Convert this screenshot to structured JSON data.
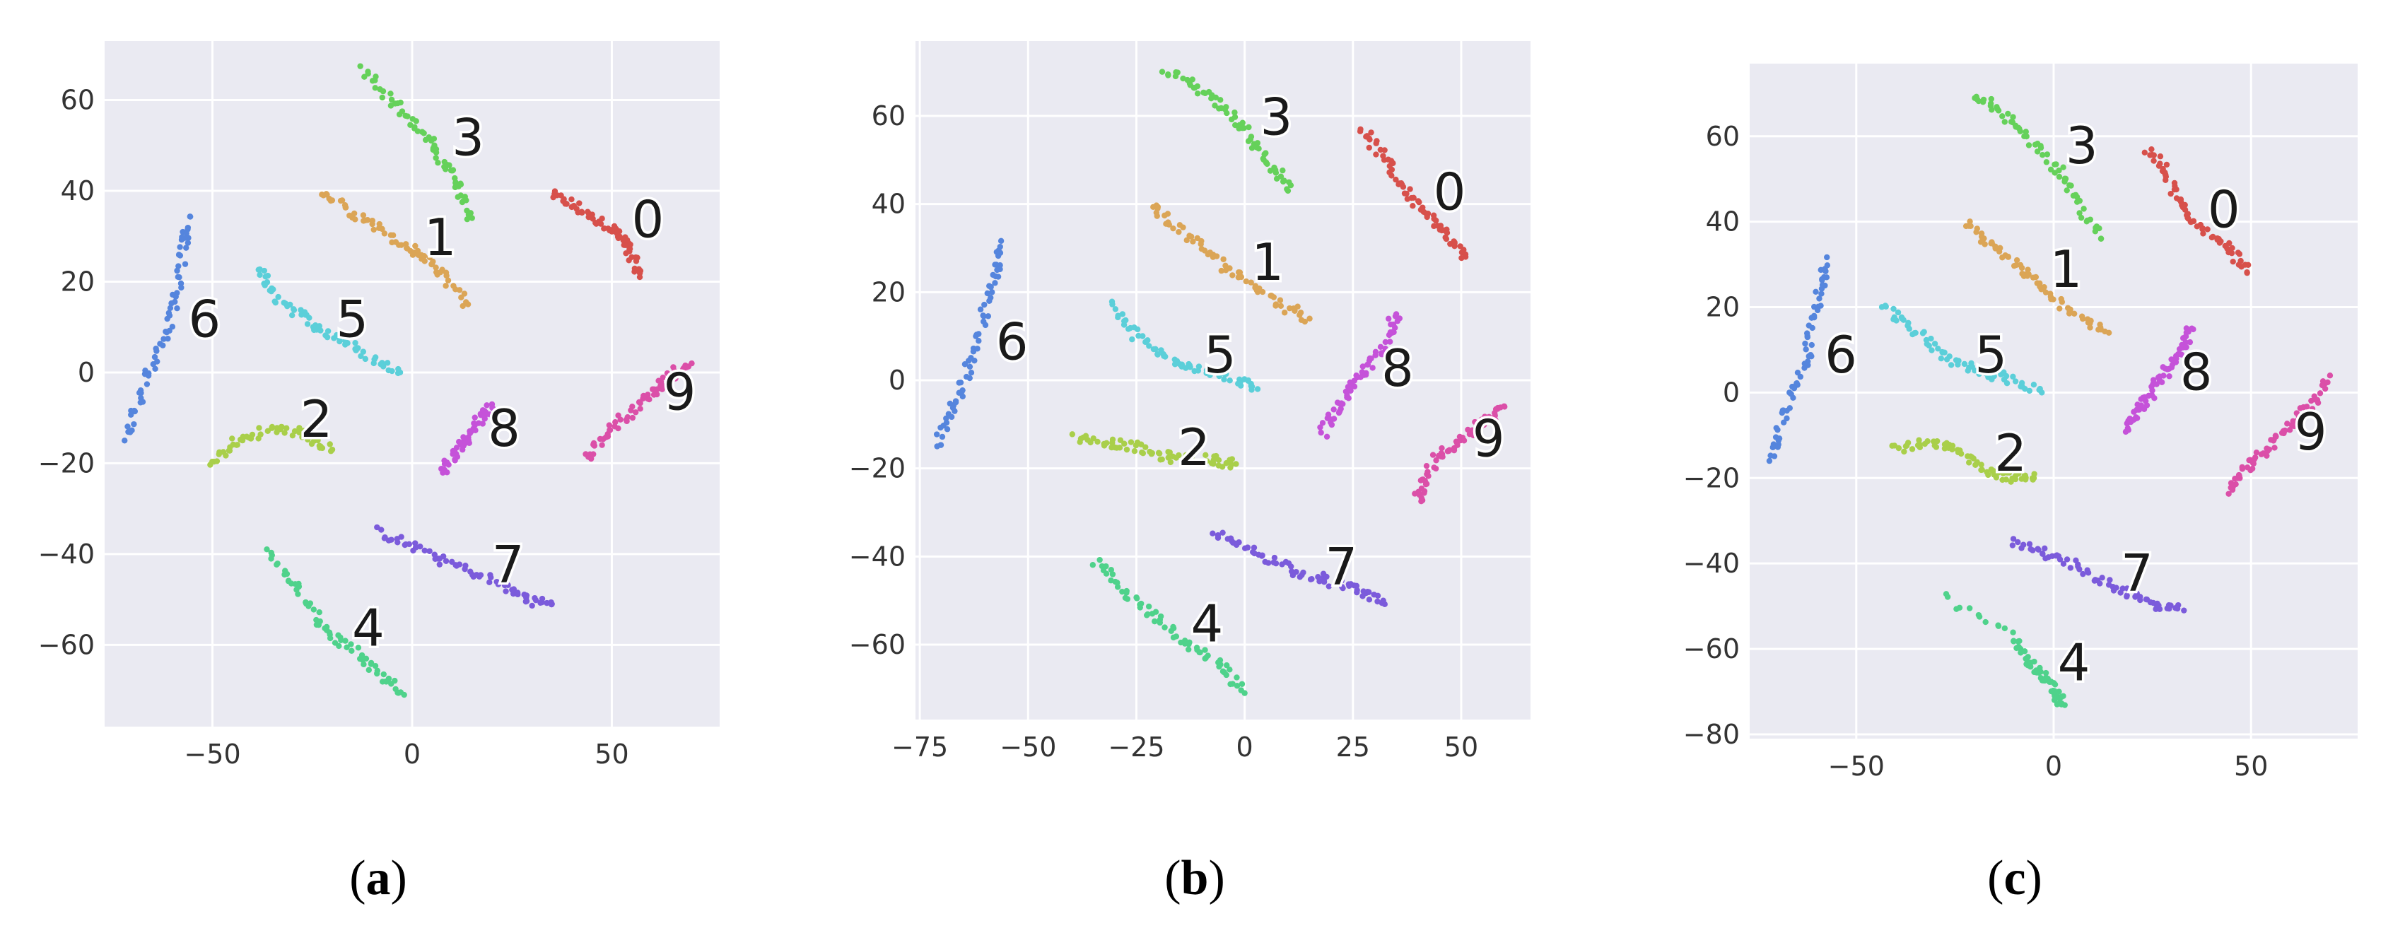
{
  "chart_data": [
    {
      "type": "scatter",
      "panel_label": "a",
      "xlim": [
        -77,
        77
      ],
      "ylim": [
        -78,
        73
      ],
      "xticks": [
        -50,
        0,
        50
      ],
      "yticks": [
        60,
        40,
        20,
        0,
        -20,
        -40,
        -60
      ],
      "grid": true,
      "clusters": [
        {
          "label": "0",
          "color": "#d7504b",
          "points": [
            [
              35,
              39
            ],
            [
              40,
              37
            ],
            [
              45,
              34
            ],
            [
              50,
              32
            ],
            [
              53,
              29
            ],
            [
              55,
              26
            ],
            [
              57,
              21
            ]
          ]
        },
        {
          "label": "1",
          "color": "#dba556",
          "points": [
            [
              -23,
              40
            ],
            [
              -16,
              36
            ],
            [
              -9,
              32
            ],
            [
              -2,
              28
            ],
            [
              3,
              25
            ],
            [
              8,
              21
            ],
            [
              14,
              15
            ]
          ]
        },
        {
          "label": "2",
          "color": "#a9cf4a",
          "points": [
            [
              -50,
              -20
            ],
            [
              -45,
              -16
            ],
            [
              -40,
              -14
            ],
            [
              -33,
              -12
            ],
            [
              -26,
              -14
            ],
            [
              -20,
              -17
            ]
          ]
        },
        {
          "label": "3",
          "color": "#65d15a",
          "points": [
            [
              -12,
              67
            ],
            [
              -6,
              61
            ],
            [
              0,
              55
            ],
            [
              5,
              50
            ],
            [
              9,
              45
            ],
            [
              12,
              40
            ],
            [
              15,
              34
            ]
          ]
        },
        {
          "label": "4",
          "color": "#4fd28b",
          "points": [
            [
              -36,
              -40
            ],
            [
              -30,
              -46
            ],
            [
              -25,
              -53
            ],
            [
              -20,
              -58
            ],
            [
              -14,
              -62
            ],
            [
              -8,
              -67
            ],
            [
              -2,
              -71
            ]
          ]
        },
        {
          "label": "5",
          "color": "#5bcfd9",
          "points": [
            [
              -38,
              23
            ],
            [
              -36,
              18
            ],
            [
              -30,
              14
            ],
            [
              -24,
              10
            ],
            [
              -17,
              7
            ],
            [
              -10,
              3
            ],
            [
              -3,
              0
            ]
          ]
        },
        {
          "label": "6",
          "color": "#5585dd",
          "points": [
            [
              -56,
              34
            ],
            [
              -57,
              28
            ],
            [
              -59,
              18
            ],
            [
              -61,
              10
            ],
            [
              -65,
              2
            ],
            [
              -68,
              -6
            ],
            [
              -72,
              -15
            ]
          ]
        },
        {
          "label": "7",
          "color": "#7b5bdb",
          "points": [
            [
              -9,
              -35
            ],
            [
              -1,
              -38
            ],
            [
              7,
              -41
            ],
            [
              15,
              -44
            ],
            [
              23,
              -47
            ],
            [
              29,
              -50
            ],
            [
              35,
              -51
            ]
          ]
        },
        {
          "label": "8",
          "color": "#c552d9",
          "points": [
            [
              8,
              -22
            ],
            [
              10,
              -19
            ],
            [
              12,
              -16
            ],
            [
              14,
              -14
            ],
            [
              17,
              -10
            ],
            [
              20,
              -7
            ]
          ]
        },
        {
          "label": "9",
          "color": "#db4fa8",
          "points": [
            [
              44,
              -19
            ],
            [
              48,
              -14
            ],
            [
              53,
              -10
            ],
            [
              58,
              -6
            ],
            [
              62,
              -3
            ],
            [
              66,
              0
            ],
            [
              70,
              2
            ]
          ]
        }
      ]
    },
    {
      "type": "scatter",
      "panel_label": "b",
      "xlim": [
        -76,
        66
      ],
      "ylim": [
        -77,
        77
      ],
      "xticks": [
        -75,
        -50,
        -25,
        0,
        25,
        50
      ],
      "yticks": [
        60,
        40,
        20,
        0,
        -20,
        -40,
        -60
      ],
      "grid": true,
      "clusters": [
        {
          "label": "0",
          "color": "#d7504b",
          "points": [
            [
              27,
              57
            ],
            [
              31,
              52
            ],
            [
              35,
              46
            ],
            [
              39,
              41
            ],
            [
              43,
              37
            ],
            [
              47,
              32
            ],
            [
              51,
              28
            ]
          ]
        },
        {
          "label": "1",
          "color": "#dba556",
          "points": [
            [
              -22,
              40
            ],
            [
              -16,
              35
            ],
            [
              -10,
              30
            ],
            [
              -3,
              25
            ],
            [
              3,
              21
            ],
            [
              9,
              17
            ],
            [
              15,
              14
            ]
          ]
        },
        {
          "label": "2",
          "color": "#a9cf4a",
          "points": [
            [
              -39,
              -13
            ],
            [
              -32,
              -14
            ],
            [
              -26,
              -15
            ],
            [
              -20,
              -17
            ],
            [
              -14,
              -18
            ],
            [
              -7,
              -18
            ],
            [
              -2,
              -19
            ]
          ]
        },
        {
          "label": "3",
          "color": "#65d15a",
          "points": [
            [
              -18,
              70
            ],
            [
              -12,
              67
            ],
            [
              -6,
              63
            ],
            [
              -1,
              58
            ],
            [
              3,
              53
            ],
            [
              7,
              48
            ],
            [
              10,
              43
            ]
          ]
        },
        {
          "label": "4",
          "color": "#4fd28b",
          "points": [
            [
              -34,
              -41
            ],
            [
              -29,
              -47
            ],
            [
              -23,
              -52
            ],
            [
              -17,
              -57
            ],
            [
              -11,
              -61
            ],
            [
              -5,
              -65
            ],
            [
              0,
              -71
            ]
          ]
        },
        {
          "label": "5",
          "color": "#5bcfd9",
          "points": [
            [
              -30,
              17
            ],
            [
              -26,
              11
            ],
            [
              -20,
              6
            ],
            [
              -14,
              4
            ],
            [
              -8,
              2
            ],
            [
              -2,
              0
            ],
            [
              3,
              -2
            ]
          ]
        },
        {
          "label": "6",
          "color": "#5585dd",
          "points": [
            [
              -56,
              31
            ],
            [
              -57,
              24
            ],
            [
              -60,
              16
            ],
            [
              -62,
              7
            ],
            [
              -65,
              -1
            ],
            [
              -68,
              -8
            ],
            [
              -71,
              -15
            ]
          ]
        },
        {
          "label": "7",
          "color": "#7b5bdb",
          "points": [
            [
              -7,
              -35
            ],
            [
              0,
              -38
            ],
            [
              7,
              -41
            ],
            [
              14,
              -44
            ],
            [
              21,
              -46
            ],
            [
              27,
              -48
            ],
            [
              32,
              -50
            ]
          ]
        },
        {
          "label": "8",
          "color": "#c552d9",
          "points": [
            [
              18,
              -12
            ],
            [
              21,
              -7
            ],
            [
              24,
              -3
            ],
            [
              27,
              1
            ],
            [
              30,
              5
            ],
            [
              33,
              10
            ],
            [
              35,
              15
            ]
          ]
        },
        {
          "label": "9",
          "color": "#db4fa8",
          "points": [
            [
              40,
              -27
            ],
            [
              41,
              -23
            ],
            [
              44,
              -18
            ],
            [
              48,
              -15
            ],
            [
              52,
              -12
            ],
            [
              56,
              -9
            ],
            [
              60,
              -6
            ]
          ]
        }
      ]
    },
    {
      "type": "scatter",
      "panel_label": "c",
      "xlim": [
        -77,
        77
      ],
      "ylim": [
        -81,
        77
      ],
      "xticks": [
        -50,
        0,
        50
      ],
      "yticks": [
        60,
        40,
        20,
        0,
        -20,
        -40,
        -60,
        -80
      ],
      "grid": true,
      "clusters": [
        {
          "label": "0",
          "color": "#d7504b",
          "points": [
            [
              24,
              57
            ],
            [
              28,
              52
            ],
            [
              31,
              46
            ],
            [
              34,
              41
            ],
            [
              40,
              37
            ],
            [
              45,
              33
            ],
            [
              49,
              28
            ]
          ]
        },
        {
          "label": "1",
          "color": "#dba556",
          "points": [
            [
              -22,
              40
            ],
            [
              -17,
              35
            ],
            [
              -11,
              31
            ],
            [
              -6,
              27
            ],
            [
              0,
              22
            ],
            [
              7,
              18
            ],
            [
              14,
              14
            ]
          ]
        },
        {
          "label": "2",
          "color": "#a9cf4a",
          "points": [
            [
              -40,
              -13
            ],
            [
              -33,
              -12
            ],
            [
              -26,
              -13
            ],
            [
              -20,
              -16
            ],
            [
              -15,
              -19
            ],
            [
              -10,
              -20
            ],
            [
              -5,
              -20
            ]
          ]
        },
        {
          "label": "3",
          "color": "#65d15a",
          "points": [
            [
              -20,
              70
            ],
            [
              -14,
              66
            ],
            [
              -8,
              61
            ],
            [
              -2,
              56
            ],
            [
              3,
              50
            ],
            [
              7,
              43
            ],
            [
              12,
              36
            ]
          ]
        },
        {
          "label": "4",
          "color": "#4fd28b",
          "points": [
            [
              -28,
              -48
            ],
            [
              -10,
              -57
            ],
            [
              -7,
              -62
            ],
            [
              -4,
              -65
            ],
            [
              -1,
              -68
            ],
            [
              1,
              -71
            ],
            [
              2,
              -73
            ]
          ]
        },
        {
          "label": "5",
          "color": "#5bcfd9",
          "points": [
            [
              -43,
              20
            ],
            [
              -37,
              16
            ],
            [
              -31,
              11
            ],
            [
              -25,
              7
            ],
            [
              -18,
              5
            ],
            [
              -11,
              3
            ],
            [
              -3,
              0
            ]
          ]
        },
        {
          "label": "6",
          "color": "#5585dd",
          "points": [
            [
              -58,
              31
            ],
            [
              -59,
              24
            ],
            [
              -61,
              16
            ],
            [
              -63,
              7
            ],
            [
              -66,
              0
            ],
            [
              -69,
              -8
            ],
            [
              -72,
              -16
            ]
          ]
        },
        {
          "label": "7",
          "color": "#7b5bdb",
          "points": [
            [
              -10,
              -35
            ],
            [
              -3,
              -37
            ],
            [
              4,
              -40
            ],
            [
              12,
              -44
            ],
            [
              19,
              -47
            ],
            [
              26,
              -50
            ],
            [
              33,
              -51
            ]
          ]
        },
        {
          "label": "8",
          "color": "#c552d9",
          "points": [
            [
              18,
              -9
            ],
            [
              21,
              -5
            ],
            [
              24,
              -1
            ],
            [
              27,
              3
            ],
            [
              30,
              7
            ],
            [
              33,
              11
            ],
            [
              35,
              15
            ]
          ]
        },
        {
          "label": "9",
          "color": "#db4fa8",
          "points": [
            [
              44,
              -23
            ],
            [
              48,
              -19
            ],
            [
              52,
              -15
            ],
            [
              56,
              -11
            ],
            [
              61,
              -7
            ],
            [
              65,
              -3
            ],
            [
              70,
              4
            ]
          ]
        }
      ]
    }
  ]
}
